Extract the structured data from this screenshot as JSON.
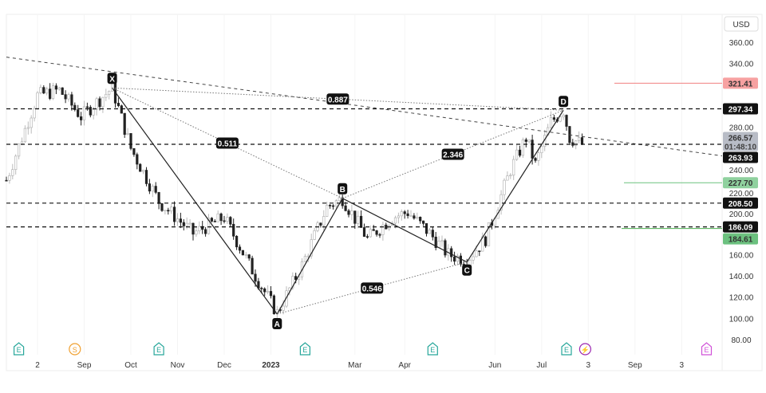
{
  "chart_data": {
    "type": "candlestick",
    "currency": "USD",
    "y_ticks": [
      "360.00",
      "340.00",
      "280.00",
      "240.00",
      "220.00",
      "200.00",
      "160.00",
      "140.00",
      "120.00",
      "100.00",
      "80.00"
    ],
    "ylim": [
      80,
      360
    ],
    "x_ticks": [
      {
        "label": "2",
        "bar": 10
      },
      {
        "label": "Sep",
        "bar": 25
      },
      {
        "label": "Oct",
        "bar": 40
      },
      {
        "label": "Nov",
        "bar": 55
      },
      {
        "label": "Dec",
        "bar": 70
      },
      {
        "label": "2023",
        "bar": 85
      },
      {
        "label": "Mar",
        "bar": 112
      },
      {
        "label": "Apr",
        "bar": 128
      },
      {
        "label": "Jun",
        "bar": 157
      },
      {
        "label": "Jul",
        "bar": 172
      },
      {
        "label": "3",
        "bar": 187
      },
      {
        "label": "Sep",
        "bar": 202
      },
      {
        "label": "3",
        "bar": 217
      }
    ],
    "price_path": [
      [
        0,
        230
      ],
      [
        10,
        310
      ],
      [
        17,
        315
      ],
      [
        24,
        290
      ],
      [
        34,
        317
      ],
      [
        40,
        260
      ],
      [
        49,
        210
      ],
      [
        60,
        180
      ],
      [
        70,
        195
      ],
      [
        80,
        140
      ],
      [
        87,
        105
      ],
      [
        95,
        150
      ],
      [
        103,
        205
      ],
      [
        108,
        213
      ],
      [
        116,
        175
      ],
      [
        124,
        195
      ],
      [
        129,
        200
      ],
      [
        136,
        180
      ],
      [
        142,
        160
      ],
      [
        148,
        155
      ],
      [
        154,
        175
      ],
      [
        162,
        240
      ],
      [
        167,
        270
      ],
      [
        170,
        245
      ],
      [
        175,
        285
      ],
      [
        179,
        296
      ],
      [
        181,
        270
      ],
      [
        185,
        264
      ]
    ],
    "pattern": {
      "points": [
        {
          "label": "X",
          "bar": 34,
          "price": 317
        },
        {
          "label": "A",
          "bar": 87,
          "price": 104
        },
        {
          "label": "B",
          "bar": 108,
          "price": 213
        },
        {
          "label": "C",
          "bar": 148,
          "price": 153
        },
        {
          "label": "D",
          "bar": 179,
          "price": 296
        }
      ],
      "ratios": [
        {
          "label": "0.887",
          "from": "X",
          "to": "D"
        },
        {
          "label": "0.511",
          "from": "X",
          "to": "B"
        },
        {
          "label": "2.346",
          "from": "B",
          "to": "D"
        },
        {
          "label": "0.546",
          "from": "A",
          "to": "C"
        }
      ]
    },
    "levels_dashed": [
      {
        "label": "297.34",
        "price": 297.34
      },
      {
        "label": "263.93",
        "price": 263.93
      },
      {
        "label": "208.50",
        "price": 208.5
      },
      {
        "label": "186.09",
        "price": 186.09
      }
    ],
    "levels_colored": [
      {
        "label": "321.41",
        "price": 321.41,
        "color": "#f7a1a1",
        "line": "#f08080"
      },
      {
        "label": "227.70",
        "price": 227.7,
        "color": "#8fd19e",
        "line": "#6cc17f"
      },
      {
        "label": "184.61",
        "price": 184.61,
        "color": "#6cc17f",
        "line": "#4caf50"
      }
    ],
    "current_price": {
      "label": "266.57",
      "countdown": "01:48:10",
      "price": 266.57
    },
    "trendline": {
      "from": [
        0,
        346
      ],
      "to": [
        230,
        253
      ]
    },
    "events": [
      {
        "type": "E",
        "bar": 4,
        "color": "#26a69a"
      },
      {
        "type": "S",
        "bar": 22,
        "color": "#f0a030"
      },
      {
        "type": "E",
        "bar": 49,
        "color": "#26a69a"
      },
      {
        "type": "E",
        "bar": 96,
        "color": "#26a69a"
      },
      {
        "type": "E",
        "bar": 137,
        "color": "#26a69a"
      },
      {
        "type": "E",
        "bar": 180,
        "color": "#26a69a"
      },
      {
        "type": "⚡",
        "bar": 186,
        "color": "#9c27b0"
      },
      {
        "type": "E",
        "bar": 225,
        "color": "#d050d8"
      }
    ]
  }
}
